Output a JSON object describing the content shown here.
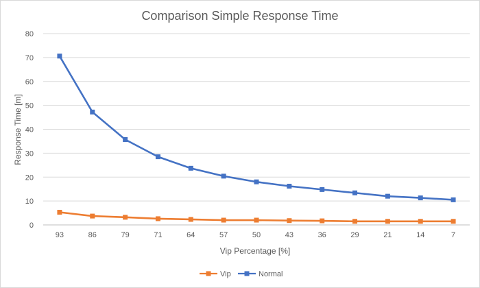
{
  "chart_data": {
    "type": "line",
    "title": "Comparison Simple Response Time",
    "xlabel": "Vip Percentage [%]",
    "ylabel": "Response Time [m]",
    "categories": [
      "93",
      "86",
      "79",
      "71",
      "64",
      "57",
      "50",
      "43",
      "36",
      "29",
      "21",
      "14",
      "7"
    ],
    "ylim": [
      0,
      80
    ],
    "yticks": [
      "0",
      "10",
      "20",
      "30",
      "40",
      "50",
      "60",
      "70",
      "80"
    ],
    "grid": true,
    "legend_position": "bottom",
    "marker": "square",
    "series": [
      {
        "name": "Vip",
        "color": "#ed7d31",
        "values": [
          5.3,
          3.7,
          3.2,
          2.6,
          2.3,
          2.0,
          2.0,
          1.8,
          1.7,
          1.5,
          1.5,
          1.5,
          1.5
        ]
      },
      {
        "name": "Normal",
        "color": "#4472c4",
        "values": [
          70.6,
          47.2,
          35.7,
          28.5,
          23.7,
          20.4,
          18.0,
          16.2,
          14.8,
          13.4,
          12.0,
          11.3,
          10.5
        ]
      }
    ]
  }
}
